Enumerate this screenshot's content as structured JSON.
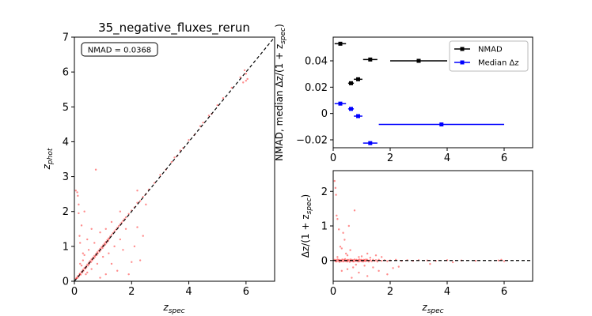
{
  "chart_data": [
    {
      "type": "scatter",
      "title": "35_negative_fluxes_rerun",
      "xlabel": "z",
      "xlabel_sub": "spec",
      "ylabel": "z",
      "ylabel_sub": "phot",
      "xlim": [
        0,
        7
      ],
      "ylim": [
        0,
        7
      ],
      "xticks": [
        0,
        2,
        4,
        6
      ],
      "yticks": [
        0,
        1,
        2,
        3,
        4,
        5,
        6,
        7
      ],
      "annotation": "NMAD = 0.0368",
      "point_color": "#ff0000",
      "reference_line": {
        "x": [
          0,
          7
        ],
        "y": [
          0,
          7
        ],
        "style": "dashed",
        "color": "#000000"
      },
      "points": [
        [
          0.05,
          0.07
        ],
        [
          0.08,
          0.1
        ],
        [
          0.1,
          0.09
        ],
        [
          0.12,
          0.15
        ],
        [
          0.15,
          0.13
        ],
        [
          0.18,
          0.2
        ],
        [
          0.2,
          0.22
        ],
        [
          0.22,
          0.19
        ],
        [
          0.25,
          0.28
        ],
        [
          0.28,
          0.25
        ],
        [
          0.3,
          0.33
        ],
        [
          0.32,
          0.3
        ],
        [
          0.35,
          0.38
        ],
        [
          0.38,
          0.36
        ],
        [
          0.4,
          0.42
        ],
        [
          0.42,
          0.4
        ],
        [
          0.45,
          0.48
        ],
        [
          0.48,
          0.45
        ],
        [
          0.5,
          0.53
        ],
        [
          0.52,
          0.5
        ],
        [
          0.55,
          0.58
        ],
        [
          0.58,
          0.55
        ],
        [
          0.6,
          0.63
        ],
        [
          0.62,
          0.6
        ],
        [
          0.65,
          0.68
        ],
        [
          0.68,
          0.65
        ],
        [
          0.7,
          0.73
        ],
        [
          0.72,
          0.7
        ],
        [
          0.75,
          0.78
        ],
        [
          0.78,
          0.75
        ],
        [
          0.8,
          0.83
        ],
        [
          0.82,
          0.8
        ],
        [
          0.85,
          0.88
        ],
        [
          0.88,
          0.85
        ],
        [
          0.9,
          0.93
        ],
        [
          0.92,
          0.9
        ],
        [
          0.95,
          0.98
        ],
        [
          0.98,
          0.95
        ],
        [
          1.0,
          1.03
        ],
        [
          1.02,
          1.0
        ],
        [
          1.05,
          1.08
        ],
        [
          1.08,
          1.05
        ],
        [
          1.1,
          1.13
        ],
        [
          1.12,
          1.1
        ],
        [
          1.15,
          1.18
        ],
        [
          1.18,
          1.15
        ],
        [
          1.2,
          1.23
        ],
        [
          1.25,
          1.28
        ],
        [
          1.3,
          1.33
        ],
        [
          1.35,
          1.38
        ],
        [
          1.4,
          1.43
        ],
        [
          1.45,
          1.48
        ],
        [
          1.5,
          1.53
        ],
        [
          1.55,
          1.58
        ],
        [
          1.6,
          1.63
        ],
        [
          1.65,
          1.68
        ],
        [
          1.7,
          1.73
        ],
        [
          1.75,
          1.78
        ],
        [
          1.8,
          1.83
        ],
        [
          1.9,
          1.93
        ],
        [
          2.0,
          2.03
        ],
        [
          2.1,
          2.12
        ],
        [
          2.2,
          2.25
        ],
        [
          2.3,
          2.3
        ],
        [
          2.4,
          2.42
        ],
        [
          2.5,
          2.5
        ],
        [
          2.6,
          2.63
        ],
        [
          2.8,
          2.82
        ],
        [
          3.0,
          3.05
        ],
        [
          3.2,
          3.2
        ],
        [
          3.4,
          3.42
        ],
        [
          3.5,
          3.55
        ],
        [
          3.6,
          3.6
        ],
        [
          3.7,
          3.75
        ],
        [
          3.8,
          3.82
        ],
        [
          4.0,
          4.05
        ],
        [
          4.2,
          4.2
        ],
        [
          4.4,
          4.45
        ],
        [
          4.5,
          4.55
        ],
        [
          4.7,
          4.75
        ],
        [
          4.8,
          4.8
        ],
        [
          5.0,
          5.05
        ],
        [
          5.2,
          5.25
        ],
        [
          5.5,
          5.55
        ],
        [
          5.8,
          5.85
        ],
        [
          6.0,
          5.95
        ],
        [
          6.0,
          5.75
        ],
        [
          5.95,
          6.05
        ],
        [
          5.9,
          5.7
        ],
        [
          6.05,
          5.8
        ],
        [
          0.3,
          0.6
        ],
        [
          0.5,
          0.9
        ],
        [
          0.7,
          1.1
        ],
        [
          0.9,
          1.4
        ],
        [
          1.1,
          1.5
        ],
        [
          1.3,
          1.7
        ],
        [
          0.4,
          0.2
        ],
        [
          0.6,
          0.35
        ],
        [
          0.8,
          0.5
        ],
        [
          1.0,
          0.7
        ],
        [
          1.2,
          0.8
        ],
        [
          1.4,
          1.0
        ],
        [
          0.2,
          0.5
        ],
        [
          0.35,
          0.75
        ],
        [
          1.6,
          2.0
        ],
        [
          1.8,
          1.5
        ],
        [
          2.2,
          2.6
        ],
        [
          2.5,
          2.2
        ],
        [
          0.25,
          0.45
        ],
        [
          0.45,
          0.25
        ],
        [
          0.05,
          2.6
        ],
        [
          0.1,
          2.55
        ],
        [
          0.12,
          2.45
        ],
        [
          0.15,
          2.2
        ],
        [
          0.18,
          1.3
        ],
        [
          0.2,
          1.1
        ],
        [
          0.25,
          1.6
        ],
        [
          0.3,
          0.8
        ],
        [
          0.35,
          2.0
        ],
        [
          0.15,
          1.95
        ],
        [
          0.75,
          3.2
        ],
        [
          1.2,
          1.2
        ],
        [
          1.6,
          1.2
        ],
        [
          1.9,
          0.2
        ],
        [
          2.0,
          0.55
        ],
        [
          2.2,
          1.55
        ],
        [
          2.4,
          1.3
        ],
        [
          1.3,
          0.5
        ],
        [
          0.9,
          0.1
        ],
        [
          2.1,
          1.0
        ],
        [
          1.5,
          0.3
        ],
        [
          2.3,
          0.6
        ],
        [
          1.1,
          0.2
        ],
        [
          1.7,
          0.9
        ],
        [
          0.6,
          1.5
        ],
        [
          0.45,
          1.2
        ]
      ]
    },
    {
      "type": "errorbar",
      "xlim": [
        0,
        7
      ],
      "ylim": [
        -0.026,
        0.058
      ],
      "xticks": [
        0,
        2,
        4,
        6
      ],
      "yticks": [
        -0.02,
        0.0,
        0.02,
        0.04
      ],
      "ylabel": "NMAD, median Δz/(1 + z",
      "ylabel_sub": "spec",
      "ylabel_tail": ")",
      "legend_position": "top-right",
      "series": [
        {
          "name": "NMAD",
          "color": "#000000",
          "x": [
            0.25,
            0.625,
            0.875,
            1.3,
            3.0
          ],
          "y": [
            0.053,
            0.023,
            0.026,
            0.041,
            0.04
          ],
          "xerr": [
            0.2,
            0.1,
            0.15,
            0.25,
            1.0
          ]
        },
        {
          "name": "Median Δz",
          "color": "#0000ff",
          "x": [
            0.25,
            0.625,
            0.875,
            1.3,
            3.8
          ],
          "y": [
            0.0075,
            0.0035,
            -0.002,
            -0.0225,
            -0.0083
          ],
          "xerr": [
            0.2,
            0.1,
            0.15,
            0.25,
            2.2
          ]
        }
      ]
    },
    {
      "type": "scatter",
      "xlabel": "z",
      "xlabel_sub": "spec",
      "ylabel": "Δz/(1 + z",
      "ylabel_sub": "spec",
      "ylabel_tail": ")",
      "xlim": [
        0,
        7
      ],
      "ylim": [
        -0.6,
        2.6
      ],
      "xticks": [
        0,
        2,
        4,
        6
      ],
      "yticks": [
        0,
        1,
        2
      ],
      "point_color": "#ff0000",
      "reference_line": {
        "y": 0,
        "style": "dashed",
        "color": "#000000"
      },
      "points": [
        [
          0.05,
          2.3
        ],
        [
          0.08,
          2.1
        ],
        [
          0.1,
          1.9
        ],
        [
          0.12,
          1.3
        ],
        [
          0.15,
          1.2
        ],
        [
          0.2,
          0.9
        ],
        [
          0.25,
          0.4
        ],
        [
          0.3,
          0.35
        ],
        [
          0.35,
          0.8
        ],
        [
          0.4,
          0.6
        ],
        [
          0.75,
          1.45
        ],
        [
          0.45,
          0.2
        ],
        [
          0.5,
          0.15
        ],
        [
          0.55,
          1.0
        ],
        [
          0.6,
          0.3
        ],
        [
          0.15,
          0.1
        ],
        [
          0.9,
          0.1
        ],
        [
          1.0,
          0.12
        ],
        [
          1.2,
          0.2
        ],
        [
          1.3,
          0.08
        ],
        [
          0.05,
          0.02
        ],
        [
          0.08,
          -0.02
        ],
        [
          0.1,
          0.01
        ],
        [
          0.12,
          -0.03
        ],
        [
          0.15,
          0.03
        ],
        [
          0.18,
          -0.01
        ],
        [
          0.2,
          0.02
        ],
        [
          0.22,
          -0.04
        ],
        [
          0.25,
          0.01
        ],
        [
          0.28,
          -0.02
        ],
        [
          0.3,
          0.0
        ],
        [
          0.32,
          0.03
        ],
        [
          0.35,
          -0.03
        ],
        [
          0.38,
          0.02
        ],
        [
          0.4,
          -0.01
        ],
        [
          0.42,
          0.04
        ],
        [
          0.45,
          -0.02
        ],
        [
          0.48,
          0.01
        ],
        [
          0.5,
          -0.03
        ],
        [
          0.52,
          0.02
        ],
        [
          0.55,
          0.0
        ],
        [
          0.58,
          -0.04
        ],
        [
          0.6,
          0.03
        ],
        [
          0.62,
          -0.01
        ],
        [
          0.65,
          0.02
        ],
        [
          0.68,
          -0.02
        ],
        [
          0.7,
          0.01
        ],
        [
          0.72,
          -0.03
        ],
        [
          0.75,
          0.03
        ],
        [
          0.78,
          -0.01
        ],
        [
          0.8,
          0.0
        ],
        [
          0.82,
          0.02
        ],
        [
          0.85,
          -0.02
        ],
        [
          0.88,
          0.01
        ],
        [
          0.9,
          -0.03
        ],
        [
          0.92,
          0.03
        ],
        [
          0.95,
          -0.01
        ],
        [
          0.98,
          0.02
        ],
        [
          1.0,
          -0.02
        ],
        [
          1.02,
          0.01
        ],
        [
          1.05,
          -0.03
        ],
        [
          1.08,
          0.02
        ],
        [
          1.1,
          0.0
        ],
        [
          1.12,
          -0.02
        ],
        [
          1.15,
          0.03
        ],
        [
          1.18,
          -0.01
        ],
        [
          1.2,
          0.02
        ],
        [
          1.25,
          -0.03
        ],
        [
          1.3,
          0.01
        ],
        [
          1.35,
          -0.02
        ],
        [
          1.4,
          0.02
        ],
        [
          1.45,
          -0.01
        ],
        [
          1.5,
          0.01
        ],
        [
          1.55,
          -0.03
        ],
        [
          1.6,
          0.02
        ],
        [
          1.7,
          -0.01
        ],
        [
          1.8,
          0.01
        ],
        [
          1.9,
          -0.02
        ],
        [
          2.0,
          0.0
        ],
        [
          2.2,
          0.02
        ],
        [
          2.4,
          -0.01
        ],
        [
          2.6,
          0.01
        ],
        [
          2.8,
          -0.01
        ],
        [
          3.0,
          0.01
        ],
        [
          3.3,
          0.0
        ],
        [
          3.6,
          -0.01
        ],
        [
          4.0,
          0.01
        ],
        [
          4.5,
          0.0
        ],
        [
          5.0,
          -0.01
        ],
        [
          5.8,
          0.0
        ],
        [
          6.0,
          -0.02
        ],
        [
          5.9,
          0.02
        ],
        [
          0.3,
          -0.3
        ],
        [
          0.5,
          -0.25
        ],
        [
          0.7,
          -0.2
        ],
        [
          0.9,
          -0.35
        ],
        [
          1.1,
          -0.15
        ],
        [
          1.4,
          -0.2
        ],
        [
          1.6,
          -0.3
        ],
        [
          1.9,
          -0.4
        ],
        [
          2.1,
          -0.22
        ],
        [
          2.3,
          -0.18
        ],
        [
          1.2,
          -0.45
        ],
        [
          0.8,
          -0.12
        ],
        [
          1.5,
          0.15
        ],
        [
          1.7,
          0.1
        ],
        [
          0.65,
          -0.5
        ],
        [
          3.4,
          -0.1
        ],
        [
          4.2,
          -0.05
        ]
      ]
    }
  ]
}
